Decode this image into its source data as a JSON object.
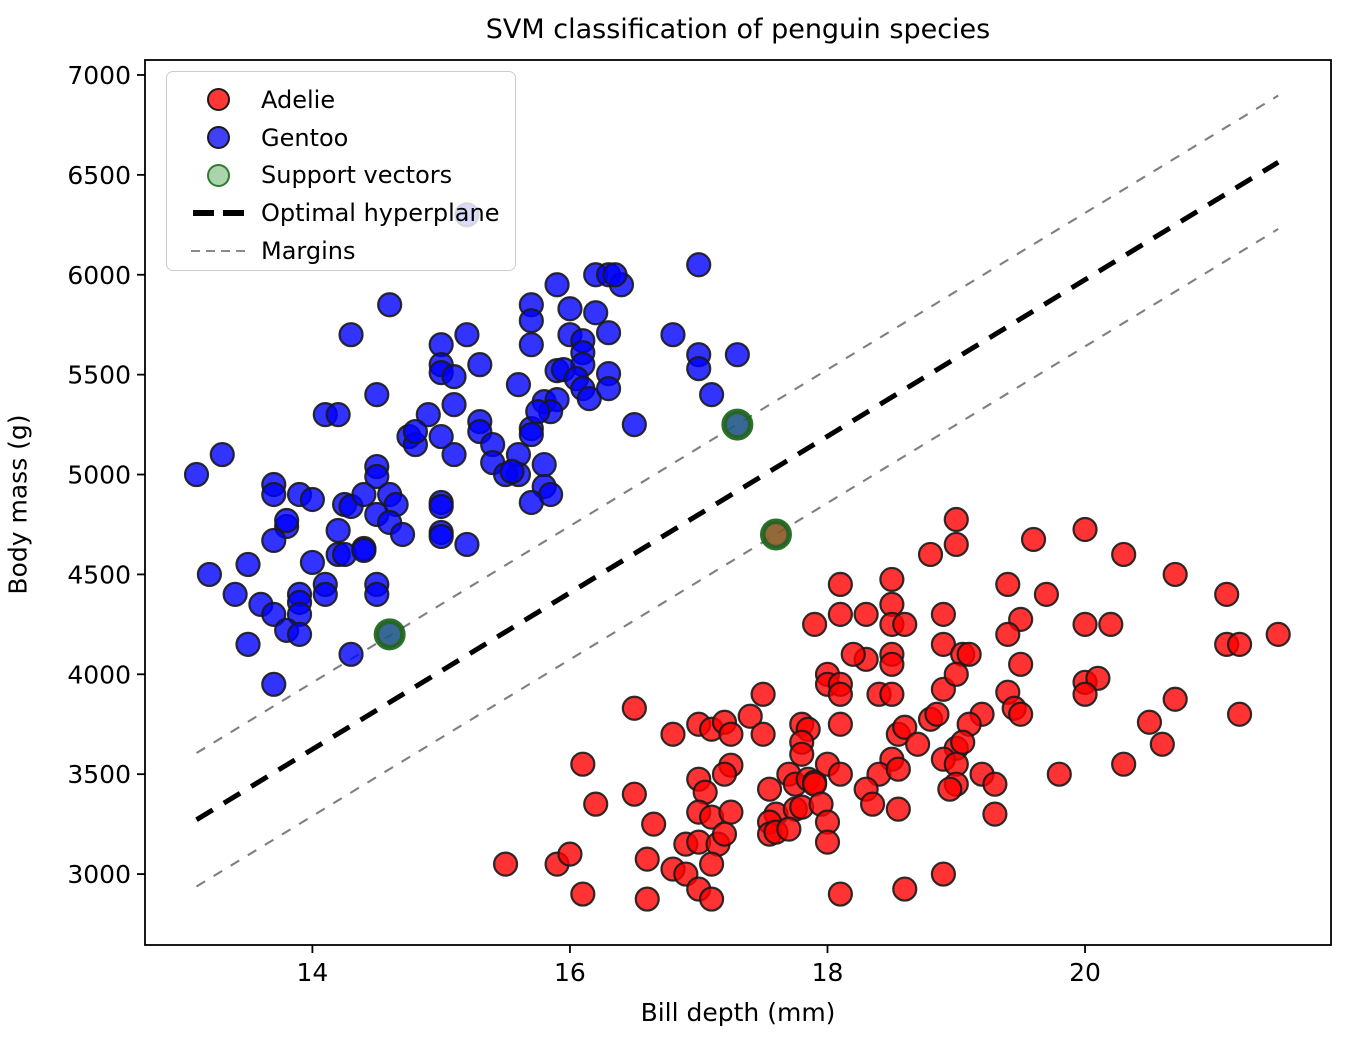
{
  "figure": {
    "title": "SVM classification of penguin species",
    "background": "#ffffff"
  },
  "axes": {
    "x_label": "Bill depth (mm)",
    "y_label": "Body mass (g)",
    "x_tick_values": [
      14,
      16,
      18,
      20
    ],
    "y_tick_values": [
      3000,
      3500,
      4000,
      4500,
      5000,
      5500,
      6000,
      6500,
      7000
    ],
    "xlim": [
      12.7,
      21.91
    ],
    "ylim": [
      2645,
      7075
    ],
    "grid": false
  },
  "colors": {
    "adelie": "#ff0000",
    "gentoo": "#0000ff",
    "support_fill": "#3c963c",
    "support_edge": "#176117",
    "hyperplane": "#000000",
    "margin": "#7f7f7f",
    "point_edge": "#1a1a1a"
  },
  "legend": {
    "entries": [
      {
        "label": "Adelie",
        "marker": "red-circle"
      },
      {
        "label": "Gentoo",
        "marker": "blue-circle"
      },
      {
        "label": "Support vectors",
        "marker": "green-circle"
      },
      {
        "label": "Optimal hyperplane",
        "marker": "thick-black-dashed-line"
      },
      {
        "label": "Margins",
        "marker": "thin-gray-dashed-line"
      }
    ],
    "position": "upper left"
  },
  "chart_data": {
    "type": "scatter",
    "title": "SVM classification of penguin species",
    "xlabel": "Bill depth (mm)",
    "ylabel": "Body mass (g)",
    "xlim": [
      12.7,
      21.91
    ],
    "ylim": [
      2645,
      7075
    ],
    "legend_position": "upper left",
    "series": [
      {
        "name": "Gentoo",
        "color": "#0000ff",
        "points": [
          [
            13.1,
            5000
          ],
          [
            13.3,
            5100
          ],
          [
            13.7,
            4950
          ],
          [
            13.7,
            4900
          ],
          [
            13.9,
            4900
          ],
          [
            14.0,
            4875
          ],
          [
            14.25,
            4850
          ],
          [
            14.3,
            4840
          ],
          [
            14.4,
            4900
          ],
          [
            14.5,
            5040
          ],
          [
            14.5,
            4990
          ],
          [
            14.6,
            4900
          ],
          [
            14.65,
            4850
          ],
          [
            14.5,
            4800
          ],
          [
            14.6,
            4760
          ],
          [
            14.7,
            4700
          ],
          [
            13.8,
            4740
          ],
          [
            13.8,
            4770
          ],
          [
            13.7,
            4670
          ],
          [
            14.2,
            4720
          ],
          [
            14.2,
            4600
          ],
          [
            14.25,
            4600
          ],
          [
            14.4,
            4630
          ],
          [
            14.4,
            4620
          ],
          [
            14.0,
            4560
          ],
          [
            13.5,
            4550
          ],
          [
            13.2,
            4500
          ],
          [
            13.4,
            4400
          ],
          [
            13.6,
            4350
          ],
          [
            13.7,
            4300
          ],
          [
            13.9,
            4400
          ],
          [
            13.9,
            4360
          ],
          [
            14.1,
            4450
          ],
          [
            14.1,
            4400
          ],
          [
            14.5,
            4450
          ],
          [
            14.5,
            4400
          ],
          [
            13.9,
            4300
          ],
          [
            13.8,
            4220
          ],
          [
            13.9,
            4200
          ],
          [
            13.5,
            4150
          ],
          [
            13.7,
            3950
          ],
          [
            14.3,
            4100
          ],
          [
            14.75,
            5190
          ],
          [
            14.8,
            5150
          ],
          [
            15.1,
            5100
          ],
          [
            15.0,
            4860
          ],
          [
            15.0,
            4840
          ],
          [
            15.0,
            4710
          ],
          [
            15.0,
            4690
          ],
          [
            15.2,
            4650
          ],
          [
            14.6,
            5850
          ],
          [
            14.3,
            5700
          ],
          [
            15.2,
            5700
          ],
          [
            15.0,
            5650
          ],
          [
            15.0,
            5550
          ],
          [
            15.0,
            5510
          ],
          [
            15.1,
            5490
          ],
          [
            15.3,
            5550
          ],
          [
            15.7,
            5850
          ],
          [
            15.7,
            5770
          ],
          [
            15.7,
            5650
          ],
          [
            15.9,
            5950
          ],
          [
            16.0,
            5830
          ],
          [
            16.0,
            5700
          ],
          [
            16.1,
            5670
          ],
          [
            16.1,
            5610
          ],
          [
            16.1,
            5550
          ],
          [
            16.2,
            5810
          ],
          [
            16.3,
            5710
          ],
          [
            16.2,
            6000
          ],
          [
            16.3,
            6000
          ],
          [
            16.4,
            5950
          ],
          [
            15.9,
            5520
          ],
          [
            15.95,
            5525
          ],
          [
            15.6,
            5450
          ],
          [
            15.8,
            5365
          ],
          [
            15.9,
            5375
          ],
          [
            15.85,
            5315
          ],
          [
            16.05,
            5480
          ],
          [
            16.1,
            5430
          ],
          [
            16.15,
            5380
          ],
          [
            16.3,
            5505
          ],
          [
            16.3,
            5430
          ],
          [
            14.5,
            5400
          ],
          [
            14.1,
            5300
          ],
          [
            14.2,
            5300
          ],
          [
            14.9,
            5300
          ],
          [
            14.8,
            5215
          ],
          [
            15.1,
            5350
          ],
          [
            15.3,
            5265
          ],
          [
            15.3,
            5215
          ],
          [
            15.7,
            5230
          ],
          [
            15.75,
            5315
          ],
          [
            15.0,
            5190
          ],
          [
            15.4,
            5150
          ],
          [
            15.4,
            5060
          ],
          [
            15.7,
            5200
          ],
          [
            15.6,
            5100
          ],
          [
            15.6,
            5000
          ],
          [
            15.5,
            5000
          ],
          [
            15.55,
            5015
          ],
          [
            15.8,
            5050
          ],
          [
            15.8,
            4940
          ],
          [
            15.85,
            4900
          ],
          [
            15.7,
            4860
          ],
          [
            17.0,
            6050
          ],
          [
            16.35,
            6000
          ],
          [
            16.8,
            5700
          ],
          [
            17.0,
            5600
          ],
          [
            17.0,
            5530
          ],
          [
            17.3,
            5600
          ],
          [
            17.1,
            5400
          ],
          [
            16.5,
            5250
          ],
          [
            15.2,
            6300
          ],
          [
            14.6,
            4200
          ],
          [
            17.3,
            5250
          ]
        ]
      },
      {
        "name": "Adelie",
        "color": "#ff0000",
        "points": [
          [
            17.6,
            4700
          ],
          [
            18.1,
            4450
          ],
          [
            18.5,
            4475
          ],
          [
            19.0,
            4775
          ],
          [
            19.0,
            4650
          ],
          [
            18.8,
            4600
          ],
          [
            18.5,
            4350
          ],
          [
            18.1,
            4300
          ],
          [
            18.3,
            4300
          ],
          [
            18.5,
            4250
          ],
          [
            18.6,
            4250
          ],
          [
            17.9,
            4250
          ],
          [
            18.9,
            4300
          ],
          [
            18.9,
            4150
          ],
          [
            19.05,
            4100
          ],
          [
            18.3,
            4075
          ],
          [
            18.2,
            4100
          ],
          [
            18.5,
            4100
          ],
          [
            18.0,
            4000
          ],
          [
            18.0,
            3950
          ],
          [
            18.1,
            3950
          ],
          [
            18.1,
            3900
          ],
          [
            18.4,
            3900
          ],
          [
            18.5,
            3900
          ],
          [
            18.5,
            4050
          ],
          [
            18.9,
            3925
          ],
          [
            19.0,
            4000
          ],
          [
            17.5,
            3900
          ],
          [
            16.5,
            3830
          ],
          [
            19.6,
            4675
          ],
          [
            20.0,
            4725
          ],
          [
            20.3,
            4600
          ],
          [
            20.7,
            4500
          ],
          [
            21.1,
            4400
          ],
          [
            19.4,
            4450
          ],
          [
            19.7,
            4400
          ],
          [
            19.5,
            4275
          ],
          [
            19.4,
            4200
          ],
          [
            20.0,
            4250
          ],
          [
            20.2,
            4250
          ],
          [
            21.1,
            4150
          ],
          [
            21.2,
            4150
          ],
          [
            21.5,
            4200
          ],
          [
            19.1,
            4100
          ],
          [
            19.5,
            4050
          ],
          [
            20.0,
            3960
          ],
          [
            20.1,
            3980
          ],
          [
            20.0,
            3900
          ],
          [
            20.7,
            3875
          ],
          [
            21.2,
            3800
          ],
          [
            19.4,
            3910
          ],
          [
            19.45,
            3830
          ],
          [
            16.8,
            3700
          ],
          [
            17.0,
            3750
          ],
          [
            17.1,
            3725
          ],
          [
            17.2,
            3760
          ],
          [
            17.25,
            3700
          ],
          [
            17.4,
            3790
          ],
          [
            17.5,
            3700
          ],
          [
            17.8,
            3750
          ],
          [
            17.85,
            3725
          ],
          [
            17.8,
            3660
          ],
          [
            17.8,
            3600
          ],
          [
            18.1,
            3750
          ],
          [
            18.55,
            3700
          ],
          [
            18.6,
            3735
          ],
          [
            18.7,
            3650
          ],
          [
            18.8,
            3775
          ],
          [
            18.85,
            3800
          ],
          [
            19.0,
            3630
          ],
          [
            18.9,
            3575
          ],
          [
            19.0,
            3550
          ],
          [
            19.0,
            3450
          ],
          [
            18.95,
            3425
          ],
          [
            18.5,
            3575
          ],
          [
            18.4,
            3500
          ],
          [
            18.55,
            3525
          ],
          [
            18.3,
            3425
          ],
          [
            18.35,
            3350
          ],
          [
            18.55,
            3325
          ],
          [
            17.7,
            3500
          ],
          [
            17.75,
            3450
          ],
          [
            17.85,
            3475
          ],
          [
            17.9,
            3460
          ],
          [
            18.0,
            3550
          ],
          [
            18.1,
            3500
          ],
          [
            17.9,
            3450
          ],
          [
            17.55,
            3425
          ],
          [
            17.6,
            3300
          ],
          [
            17.55,
            3260
          ],
          [
            17.75,
            3325
          ],
          [
            17.8,
            3335
          ],
          [
            17.95,
            3350
          ],
          [
            18.0,
            3260
          ],
          [
            18.0,
            3160
          ],
          [
            17.0,
            3475
          ],
          [
            17.05,
            3410
          ],
          [
            17.0,
            3310
          ],
          [
            17.1,
            3285
          ],
          [
            17.25,
            3310
          ],
          [
            17.25,
            3545
          ],
          [
            17.2,
            3500
          ],
          [
            16.65,
            3250
          ],
          [
            16.5,
            3400
          ],
          [
            16.2,
            3350
          ],
          [
            16.9,
            3150
          ],
          [
            17.0,
            3160
          ],
          [
            17.15,
            3150
          ],
          [
            17.2,
            3200
          ],
          [
            16.6,
            3075
          ],
          [
            16.8,
            3025
          ],
          [
            16.9,
            3000
          ],
          [
            17.1,
            3050
          ],
          [
            17.0,
            2925
          ],
          [
            17.1,
            2875
          ],
          [
            16.6,
            2875
          ],
          [
            18.1,
            2900
          ],
          [
            18.6,
            2925
          ],
          [
            18.9,
            3000
          ],
          [
            17.55,
            3200
          ],
          [
            17.6,
            3210
          ],
          [
            17.7,
            3225
          ],
          [
            19.2,
            3800
          ],
          [
            19.1,
            3750
          ],
          [
            19.5,
            3800
          ],
          [
            19.05,
            3660
          ],
          [
            20.5,
            3760
          ],
          [
            20.6,
            3650
          ],
          [
            20.3,
            3550
          ],
          [
            19.8,
            3500
          ],
          [
            19.2,
            3500
          ],
          [
            19.3,
            3450
          ],
          [
            19.3,
            3300
          ],
          [
            16.1,
            3550
          ],
          [
            15.5,
            3050
          ],
          [
            15.9,
            3050
          ],
          [
            16.0,
            3100
          ],
          [
            16.1,
            2900
          ]
        ]
      },
      {
        "name": "Support vectors",
        "color": "#3c963c",
        "points": [
          [
            14.6,
            4200
          ],
          [
            17.3,
            5250
          ],
          [
            17.6,
            4700
          ]
        ]
      }
    ],
    "lines": [
      {
        "name": "Optimal hyperplane",
        "style": "dashed-thick",
        "color": "#000000",
        "x": [
          13.1,
          21.5
        ],
        "y": [
          3272,
          6563
        ]
      },
      {
        "name": "Margin upper",
        "style": "dashed-thin",
        "color": "#7f7f7f",
        "x": [
          13.1,
          21.5
        ],
        "y": [
          3606,
          6897
        ]
      },
      {
        "name": "Margin lower",
        "style": "dashed-thin",
        "color": "#7f7f7f",
        "x": [
          13.1,
          21.5
        ],
        "y": [
          2938,
          6229
        ]
      }
    ]
  }
}
